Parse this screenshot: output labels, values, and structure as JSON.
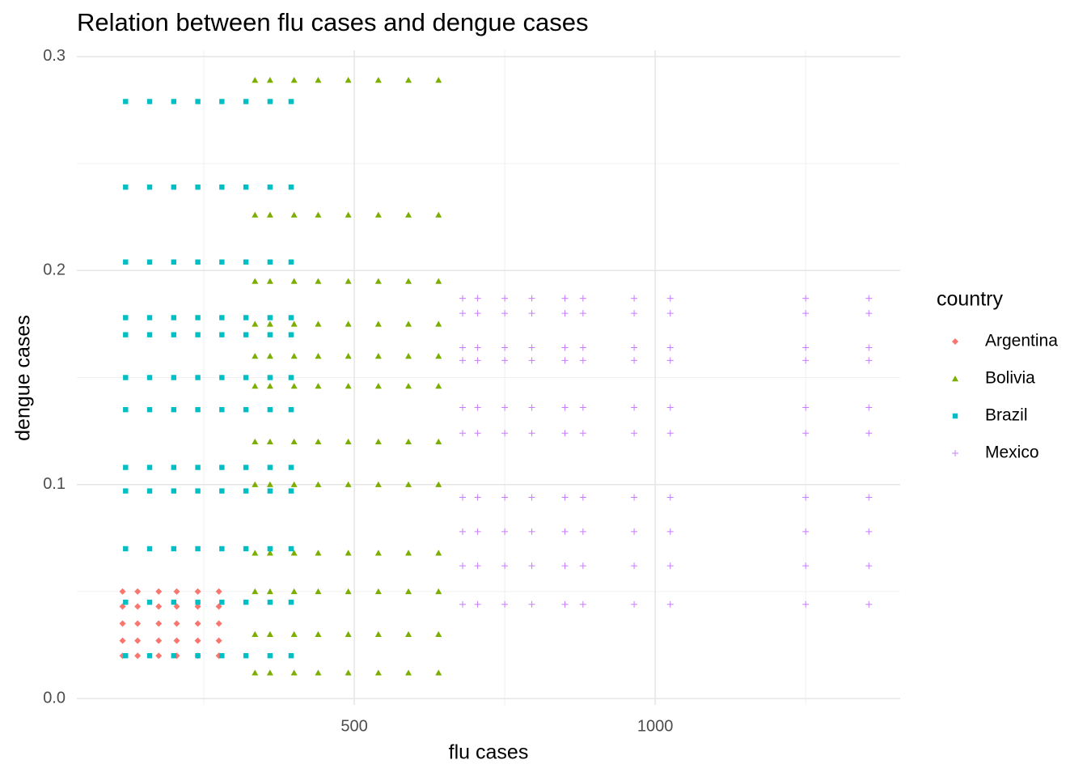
{
  "chart_data": {
    "type": "scatter",
    "title": "Relation between flu cases and dengue cases",
    "x_label": "flu cases",
    "y_label": "dengue cases",
    "legend_title": "country",
    "legend": "right",
    "xlim": [
      39,
      1407
    ],
    "ylim": [
      -0.003,
      0.303
    ],
    "xticks": [
      500,
      1000
    ],
    "yticks": [
      {
        "value": 0,
        "label": "0.0"
      },
      0.1,
      0.2,
      0.3
    ],
    "x_minor_grid": [
      250,
      750,
      1250
    ],
    "y_minor_grid": [
      0.05,
      0.15,
      0.25
    ],
    "grid": true,
    "series": [
      {
        "name": "Argentina",
        "color": "#F8766D",
        "marker": "diamond",
        "x": [
          115,
          140,
          175,
          205,
          240,
          275,
          115,
          140,
          175,
          205,
          240,
          275,
          115,
          140,
          175,
          205,
          240,
          275,
          115,
          140,
          175,
          205,
          240,
          275,
          115,
          140,
          175,
          205,
          240,
          275
        ],
        "values": [
          0.05,
          0.05,
          0.05,
          0.05,
          0.05,
          0.05,
          0.043,
          0.043,
          0.043,
          0.043,
          0.043,
          0.043,
          0.035,
          0.035,
          0.035,
          0.035,
          0.035,
          0.035,
          0.027,
          0.027,
          0.027,
          0.027,
          0.027,
          0.027,
          0.02,
          0.02,
          0.02,
          0.02,
          0.02,
          0.02
        ]
      },
      {
        "name": "Bolivia",
        "color": "#7CAE00",
        "marker": "triangle",
        "x": [
          335,
          360,
          400,
          440,
          490,
          540,
          590,
          640,
          335,
          360,
          400,
          440,
          490,
          540,
          590,
          640,
          335,
          360,
          400,
          440,
          490,
          540,
          590,
          640,
          335,
          360,
          400,
          440,
          490,
          540,
          590,
          640,
          335,
          360,
          400,
          440,
          490,
          540,
          590,
          640,
          335,
          360,
          400,
          440,
          490,
          540,
          590,
          640,
          335,
          360,
          400,
          440,
          490,
          540,
          590,
          640,
          335,
          360,
          400,
          440,
          490,
          540,
          590,
          640,
          335,
          360,
          400,
          440,
          490,
          540,
          590,
          640,
          335,
          360,
          400,
          440,
          490,
          540,
          590,
          640,
          335,
          360,
          400,
          440,
          490,
          540,
          590,
          640,
          335,
          360,
          400,
          440,
          490,
          540,
          590,
          640
        ],
        "values": [
          0.289,
          0.289,
          0.289,
          0.289,
          0.289,
          0.289,
          0.289,
          0.289,
          0.226,
          0.226,
          0.226,
          0.226,
          0.226,
          0.226,
          0.226,
          0.226,
          0.195,
          0.195,
          0.195,
          0.195,
          0.195,
          0.195,
          0.195,
          0.195,
          0.175,
          0.175,
          0.175,
          0.175,
          0.175,
          0.175,
          0.175,
          0.175,
          0.16,
          0.16,
          0.16,
          0.16,
          0.16,
          0.16,
          0.16,
          0.16,
          0.146,
          0.146,
          0.146,
          0.146,
          0.146,
          0.146,
          0.146,
          0.146,
          0.12,
          0.12,
          0.12,
          0.12,
          0.12,
          0.12,
          0.12,
          0.12,
          0.1,
          0.1,
          0.1,
          0.1,
          0.1,
          0.1,
          0.1,
          0.1,
          0.068,
          0.068,
          0.068,
          0.068,
          0.068,
          0.068,
          0.068,
          0.068,
          0.05,
          0.05,
          0.05,
          0.05,
          0.05,
          0.05,
          0.05,
          0.05,
          0.03,
          0.03,
          0.03,
          0.03,
          0.03,
          0.03,
          0.03,
          0.03,
          0.012,
          0.012,
          0.012,
          0.012,
          0.012,
          0.012,
          0.012,
          0.012
        ]
      },
      {
        "name": "Brazil",
        "color": "#00BFC4",
        "marker": "square",
        "x": [
          120,
          160,
          200,
          240,
          280,
          320,
          360,
          395,
          120,
          160,
          200,
          240,
          280,
          320,
          360,
          395,
          120,
          160,
          200,
          240,
          280,
          320,
          360,
          395,
          120,
          160,
          200,
          240,
          280,
          320,
          360,
          395,
          120,
          160,
          200,
          240,
          280,
          320,
          360,
          395,
          120,
          160,
          200,
          240,
          280,
          320,
          360,
          395,
          120,
          160,
          200,
          240,
          280,
          320,
          360,
          395,
          120,
          160,
          200,
          240,
          280,
          320,
          360,
          395,
          120,
          160,
          200,
          240,
          280,
          320,
          360,
          395,
          120,
          160,
          200,
          240,
          280,
          320,
          360,
          395,
          120,
          160,
          200,
          240,
          280,
          320,
          360,
          395,
          120,
          160,
          200,
          240,
          280,
          320,
          360,
          395
        ],
        "values": [
          0.279,
          0.279,
          0.279,
          0.279,
          0.279,
          0.279,
          0.279,
          0.279,
          0.239,
          0.239,
          0.239,
          0.239,
          0.239,
          0.239,
          0.239,
          0.239,
          0.204,
          0.204,
          0.204,
          0.204,
          0.204,
          0.204,
          0.204,
          0.204,
          0.178,
          0.178,
          0.178,
          0.178,
          0.178,
          0.178,
          0.178,
          0.178,
          0.17,
          0.17,
          0.17,
          0.17,
          0.17,
          0.17,
          0.17,
          0.17,
          0.15,
          0.15,
          0.15,
          0.15,
          0.15,
          0.15,
          0.15,
          0.15,
          0.135,
          0.135,
          0.135,
          0.135,
          0.135,
          0.135,
          0.135,
          0.135,
          0.108,
          0.108,
          0.108,
          0.108,
          0.108,
          0.108,
          0.108,
          0.108,
          0.097,
          0.097,
          0.097,
          0.097,
          0.097,
          0.097,
          0.097,
          0.097,
          0.07,
          0.07,
          0.07,
          0.07,
          0.07,
          0.07,
          0.07,
          0.07,
          0.045,
          0.045,
          0.045,
          0.045,
          0.045,
          0.045,
          0.045,
          0.045,
          0.02,
          0.02,
          0.02,
          0.02,
          0.02,
          0.02,
          0.02,
          0.02
        ]
      },
      {
        "name": "Mexico",
        "color": "#C77CFF",
        "marker": "plus",
        "x": [
          680,
          705,
          750,
          795,
          850,
          880,
          965,
          1025,
          1250,
          1355,
          680,
          705,
          750,
          795,
          850,
          880,
          965,
          1025,
          1250,
          1355,
          680,
          705,
          750,
          795,
          850,
          880,
          965,
          1025,
          1250,
          1355,
          680,
          705,
          750,
          795,
          850,
          880,
          965,
          1025,
          1250,
          1355,
          680,
          705,
          750,
          795,
          850,
          880,
          965,
          1025,
          1250,
          1355,
          680,
          705,
          750,
          795,
          850,
          880,
          965,
          1025,
          1250,
          1355,
          680,
          705,
          750,
          795,
          850,
          880,
          965,
          1025,
          1250,
          1355,
          680,
          705,
          750,
          795,
          850,
          880,
          965,
          1025,
          1250,
          1355,
          680,
          705,
          750,
          795,
          850,
          880,
          965,
          1025,
          1250,
          1355,
          680,
          705,
          750,
          795,
          850,
          880,
          965,
          1025,
          1250,
          1355
        ],
        "values": [
          0.187,
          0.187,
          0.187,
          0.187,
          0.187,
          0.187,
          0.187,
          0.187,
          0.187,
          0.187,
          0.18,
          0.18,
          0.18,
          0.18,
          0.18,
          0.18,
          0.18,
          0.18,
          0.18,
          0.18,
          0.164,
          0.164,
          0.164,
          0.164,
          0.164,
          0.164,
          0.164,
          0.164,
          0.164,
          0.164,
          0.158,
          0.158,
          0.158,
          0.158,
          0.158,
          0.158,
          0.158,
          0.158,
          0.158,
          0.158,
          0.136,
          0.136,
          0.136,
          0.136,
          0.136,
          0.136,
          0.136,
          0.136,
          0.136,
          0.136,
          0.124,
          0.124,
          0.124,
          0.124,
          0.124,
          0.124,
          0.124,
          0.124,
          0.124,
          0.124,
          0.094,
          0.094,
          0.094,
          0.094,
          0.094,
          0.094,
          0.094,
          0.094,
          0.094,
          0.094,
          0.078,
          0.078,
          0.078,
          0.078,
          0.078,
          0.078,
          0.078,
          0.078,
          0.078,
          0.078,
          0.062,
          0.062,
          0.062,
          0.062,
          0.062,
          0.062,
          0.062,
          0.062,
          0.062,
          0.062,
          0.044,
          0.044,
          0.044,
          0.044,
          0.044,
          0.044,
          0.044,
          0.044,
          0.044,
          0.044
        ]
      }
    ]
  }
}
